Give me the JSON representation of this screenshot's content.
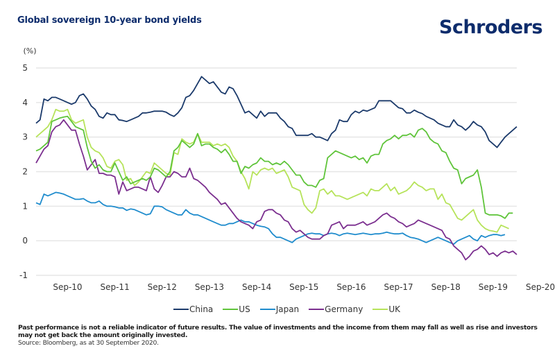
{
  "header": {
    "title": "Global sovereign 10-year bond yields",
    "logo": "Schroders"
  },
  "footer": {
    "disclaimer": "Past performance is not a reliable indicator of future results. The value of investments and the income from them may fall as well as rise and investors may not get back the amount originally invested.",
    "source": "Source: Bloomberg, as at 30 September 2020."
  },
  "colors": {
    "China": "#1b3a6b",
    "US": "#5fc43a",
    "Japan": "#1f8ccd",
    "Germany": "#7b2f8f",
    "UK": "#b6e35a",
    "grid": "#e6e6e6",
    "brand": "#0d2c6c"
  },
  "chart_data": {
    "type": "line",
    "title": "Global sovereign 10-year bond yields",
    "ylabel": "(%)",
    "xlabel": "",
    "ylim": [
      -1,
      5
    ],
    "yticks": [
      -1,
      0,
      1,
      2,
      3,
      4,
      5
    ],
    "xticks": [
      "Sep-10",
      "Sep-11",
      "Sep-12",
      "Sep-13",
      "Sep-14",
      "Sep-15",
      "Sep-16",
      "Sep-17",
      "Sep-18",
      "Sep-19",
      "Sep-20"
    ],
    "grid": true,
    "legend_position": "bottom-center",
    "x_start": "Jan-10",
    "x_frequency": "monthly",
    "series": [
      {
        "name": "China",
        "values": [
          3.4,
          3.5,
          4.1,
          4.05,
          4.15,
          4.15,
          4.1,
          4.05,
          4.0,
          3.95,
          4.0,
          4.2,
          4.25,
          4.1,
          3.9,
          3.8,
          3.6,
          3.55,
          3.7,
          3.65,
          3.65,
          3.5,
          3.48,
          3.45,
          3.5,
          3.55,
          3.6,
          3.7,
          3.7,
          3.72,
          3.75,
          3.75,
          3.75,
          3.72,
          3.65,
          3.6,
          3.7,
          3.85,
          4.15,
          4.2,
          4.35,
          4.55,
          4.75,
          4.65,
          4.55,
          4.6,
          4.45,
          4.3,
          4.25,
          4.45,
          4.4,
          4.2,
          3.95,
          3.7,
          3.75,
          3.65,
          3.55,
          3.75,
          3.6,
          3.7,
          3.7,
          3.7,
          3.55,
          3.45,
          3.3,
          3.25,
          3.05,
          3.05,
          3.05,
          3.05,
          3.1,
          3.0,
          3.0,
          2.95,
          2.9,
          3.1,
          3.2,
          3.5,
          3.45,
          3.45,
          3.65,
          3.75,
          3.7,
          3.78,
          3.75,
          3.8,
          3.85,
          4.05,
          4.05,
          4.05,
          4.05,
          3.95,
          3.85,
          3.82,
          3.7,
          3.7,
          3.78,
          3.72,
          3.68,
          3.6,
          3.55,
          3.5,
          3.4,
          3.35,
          3.3,
          3.3,
          3.5,
          3.35,
          3.3,
          3.2,
          3.3,
          3.45,
          3.35,
          3.3,
          3.15,
          2.9,
          2.8,
          2.7,
          2.85,
          3.0,
          3.1,
          3.2,
          3.3
        ]
      },
      {
        "name": "US",
        "values": [
          2.6,
          2.65,
          2.75,
          2.85,
          3.45,
          3.5,
          3.55,
          3.58,
          3.6,
          3.45,
          3.3,
          3.25,
          3.2,
          2.7,
          2.3,
          2.1,
          2.2,
          2.05,
          2.0,
          2.0,
          2.25,
          2.0,
          1.75,
          1.85,
          1.65,
          1.7,
          1.75,
          1.8,
          1.75,
          1.85,
          2.1,
          2.05,
          1.95,
          1.85,
          2.0,
          2.6,
          2.7,
          2.9,
          2.8,
          2.7,
          2.8,
          3.1,
          2.75,
          2.8,
          2.8,
          2.7,
          2.65,
          2.55,
          2.65,
          2.5,
          2.3,
          2.3,
          1.95,
          2.15,
          2.1,
          2.2,
          2.25,
          2.4,
          2.3,
          2.3,
          2.2,
          2.25,
          2.2,
          2.3,
          2.2,
          2.05,
          1.9,
          1.9,
          1.7,
          1.6,
          1.6,
          1.55,
          1.75,
          1.8,
          2.4,
          2.5,
          2.6,
          2.55,
          2.5,
          2.45,
          2.4,
          2.45,
          2.35,
          2.4,
          2.25,
          2.45,
          2.5,
          2.5,
          2.8,
          2.9,
          2.95,
          3.05,
          2.95,
          3.05,
          3.05,
          3.1,
          3.0,
          3.2,
          3.25,
          3.15,
          2.95,
          2.85,
          2.8,
          2.6,
          2.55,
          2.3,
          2.1,
          2.05,
          1.65,
          1.8,
          1.85,
          1.9,
          2.05,
          1.55,
          0.8,
          0.75,
          0.75,
          0.75,
          0.72,
          0.65,
          0.8,
          0.8
        ]
      },
      {
        "name": "Japan",
        "values": [
          1.1,
          1.05,
          1.35,
          1.3,
          1.35,
          1.4,
          1.38,
          1.35,
          1.3,
          1.25,
          1.2,
          1.2,
          1.22,
          1.15,
          1.1,
          1.1,
          1.15,
          1.05,
          1.0,
          1.0,
          0.98,
          0.95,
          0.95,
          0.88,
          0.92,
          0.9,
          0.85,
          0.8,
          0.75,
          0.78,
          1.0,
          1.0,
          0.98,
          0.9,
          0.85,
          0.8,
          0.75,
          0.75,
          0.9,
          0.8,
          0.75,
          0.75,
          0.7,
          0.65,
          0.6,
          0.55,
          0.5,
          0.45,
          0.45,
          0.5,
          0.5,
          0.55,
          0.6,
          0.55,
          0.55,
          0.5,
          0.45,
          0.42,
          0.4,
          0.35,
          0.2,
          0.1,
          0.1,
          0.05,
          0.0,
          -0.05,
          0.05,
          0.1,
          0.15,
          0.2,
          0.22,
          0.2,
          0.2,
          0.15,
          0.2,
          0.22,
          0.2,
          0.15,
          0.2,
          0.22,
          0.2,
          0.18,
          0.2,
          0.22,
          0.2,
          0.18,
          0.2,
          0.2,
          0.22,
          0.25,
          0.22,
          0.2,
          0.2,
          0.22,
          0.15,
          0.1,
          0.08,
          0.05,
          0.0,
          -0.05,
          0.0,
          0.05,
          0.1,
          0.05,
          0.0,
          -0.05,
          -0.1,
          0.0,
          0.05,
          0.1,
          0.15,
          0.05,
          0.0,
          0.15,
          0.1,
          0.15,
          0.18,
          0.18,
          0.15,
          0.18
        ]
      },
      {
        "name": "Germany",
        "values": [
          2.25,
          2.45,
          2.65,
          2.75,
          3.15,
          3.3,
          3.35,
          3.5,
          3.35,
          3.2,
          3.2,
          2.8,
          2.45,
          2.05,
          2.2,
          2.35,
          1.95,
          1.95,
          1.9,
          1.9,
          1.85,
          1.35,
          1.7,
          1.45,
          1.5,
          1.55,
          1.55,
          1.5,
          1.45,
          1.85,
          1.5,
          1.4,
          1.6,
          1.85,
          1.85,
          2.0,
          1.95,
          1.85,
          1.85,
          2.1,
          1.8,
          1.75,
          1.65,
          1.55,
          1.4,
          1.3,
          1.2,
          1.05,
          1.1,
          0.95,
          0.8,
          0.65,
          0.55,
          0.5,
          0.45,
          0.35,
          0.55,
          0.6,
          0.85,
          0.9,
          0.9,
          0.8,
          0.75,
          0.6,
          0.55,
          0.35,
          0.25,
          0.3,
          0.2,
          0.1,
          0.05,
          0.05,
          0.05,
          0.15,
          0.2,
          0.45,
          0.5,
          0.55,
          0.35,
          0.45,
          0.45,
          0.45,
          0.5,
          0.55,
          0.45,
          0.5,
          0.55,
          0.65,
          0.75,
          0.8,
          0.7,
          0.65,
          0.55,
          0.5,
          0.4,
          0.45,
          0.5,
          0.6,
          0.55,
          0.5,
          0.45,
          0.4,
          0.35,
          0.3,
          0.1,
          0.05,
          -0.15,
          -0.25,
          -0.35,
          -0.55,
          -0.45,
          -0.3,
          -0.25,
          -0.15,
          -0.25,
          -0.4,
          -0.35,
          -0.45,
          -0.35,
          -0.3,
          -0.35,
          -0.3,
          -0.4
        ]
      },
      {
        "name": "UK",
        "values": [
          3.0,
          3.1,
          3.2,
          3.3,
          3.5,
          3.8,
          3.75,
          3.75,
          3.8,
          3.5,
          3.4,
          3.45,
          3.5,
          3.0,
          2.7,
          2.6,
          2.55,
          2.4,
          2.15,
          2.1,
          2.3,
          2.35,
          2.2,
          1.75,
          1.8,
          1.6,
          1.7,
          1.85,
          2.0,
          1.95,
          2.25,
          2.15,
          2.05,
          1.95,
          1.9,
          2.55,
          2.5,
          2.95,
          2.85,
          2.8,
          2.85,
          3.1,
          2.85,
          2.85,
          2.85,
          2.75,
          2.8,
          2.75,
          2.8,
          2.7,
          2.45,
          2.3,
          2.0,
          1.8,
          1.5,
          2.0,
          1.9,
          2.05,
          2.1,
          2.05,
          2.1,
          1.95,
          2.0,
          2.05,
          1.85,
          1.55,
          1.5,
          1.45,
          1.05,
          0.9,
          0.8,
          0.95,
          1.45,
          1.5,
          1.35,
          1.45,
          1.3,
          1.3,
          1.25,
          1.2,
          1.25,
          1.3,
          1.35,
          1.4,
          1.3,
          1.5,
          1.45,
          1.45,
          1.55,
          1.65,
          1.45,
          1.55,
          1.35,
          1.4,
          1.45,
          1.55,
          1.7,
          1.6,
          1.55,
          1.45,
          1.5,
          1.5,
          1.2,
          1.35,
          1.1,
          1.05,
          0.85,
          0.65,
          0.6,
          0.7,
          0.8,
          0.9,
          0.6,
          0.45,
          0.35,
          0.3,
          0.28,
          0.25,
          0.45,
          0.4,
          0.35
        ]
      }
    ]
  }
}
